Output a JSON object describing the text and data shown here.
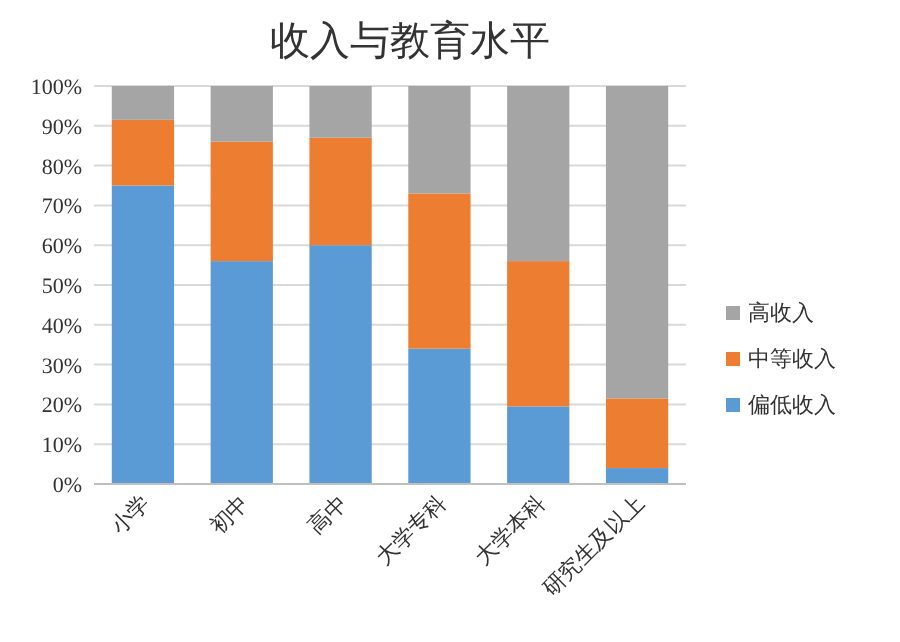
{
  "chart_data": {
    "type": "bar",
    "title": "收入与教育水平",
    "stacked": true,
    "categories": [
      "小学",
      "初中",
      "高中",
      "大学专科",
      "大学本科",
      "研究生及以上"
    ],
    "series": [
      {
        "name": "偏低收入",
        "color": "#5b9bd5",
        "values": [
          75,
          56,
          60,
          34,
          19.5,
          4
        ]
      },
      {
        "name": "中等收入",
        "color": "#ed7d31",
        "values": [
          16.5,
          30,
          27,
          39,
          36.5,
          17.5
        ]
      },
      {
        "name": "高收入",
        "color": "#a5a5a5",
        "values": [
          8.5,
          14,
          13,
          27,
          44,
          78.5
        ]
      }
    ],
    "ylim": [
      0,
      100
    ],
    "yticks": [
      {
        "value": 0,
        "label": "0%"
      },
      {
        "value": 10,
        "label": "10%"
      },
      {
        "value": 20,
        "label": "20%"
      },
      {
        "value": 30,
        "label": "30%"
      },
      {
        "value": 40,
        "label": "40%"
      },
      {
        "value": 50,
        "label": "50%"
      },
      {
        "value": 60,
        "label": "60%"
      },
      {
        "value": 70,
        "label": "70%"
      },
      {
        "value": 80,
        "label": "80%"
      },
      {
        "value": 90,
        "label": "90%"
      },
      {
        "value": 100,
        "label": "100%"
      }
    ],
    "grid": "y",
    "legend": "right"
  }
}
